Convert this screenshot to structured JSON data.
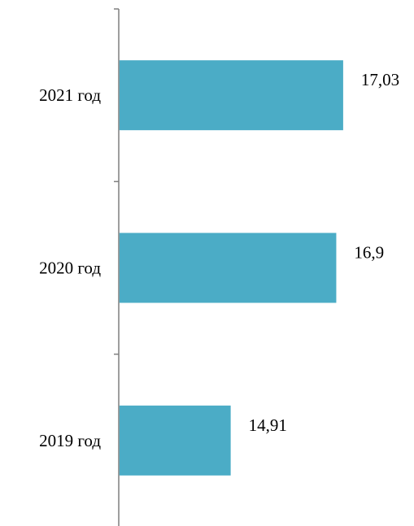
{
  "chart_data": {
    "type": "bar",
    "orientation": "horizontal",
    "categories": [
      "2021 год",
      "2020 год",
      "2019 год"
    ],
    "values": [
      17.03,
      16.9,
      14.91
    ],
    "data_labels": [
      "17,03",
      "16,9",
      "14,91"
    ],
    "xlim": [
      12.8,
      17.2
    ],
    "grid": false,
    "legend": "none",
    "colors": {
      "bar": "#4BACC6",
      "axis": "#7F7F7F"
    }
  }
}
